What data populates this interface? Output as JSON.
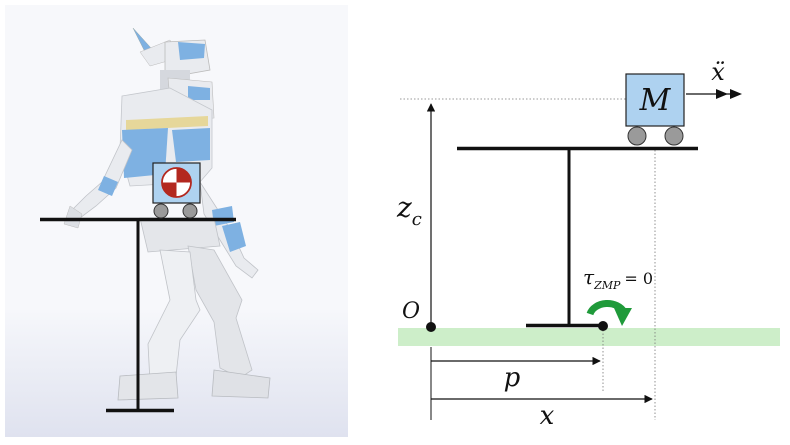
{
  "colors": {
    "photo_bg_top": "#f6f7fb",
    "photo_bg_bottom": "#dfe2ef",
    "robot_white": "#e9ebef",
    "robot_blue": "#7eb1e2",
    "robot_yellow": "#e6d79a",
    "cart_fill": "#aed2f0",
    "wheel_fill": "#9a9a9a",
    "ground_fill": "#cdeec9",
    "zmp_arrow": "#1f9a3a",
    "cog_red": "#b3281f"
  },
  "diagram": {
    "mass_label": "M",
    "accel_label": "ẍ",
    "height_label": "z",
    "height_sub": "c",
    "origin_label": "O",
    "torque_label": "τ",
    "torque_sub": "ZMP",
    "torque_eq": "= 0",
    "zmp_label": "p",
    "position_label": "x"
  }
}
